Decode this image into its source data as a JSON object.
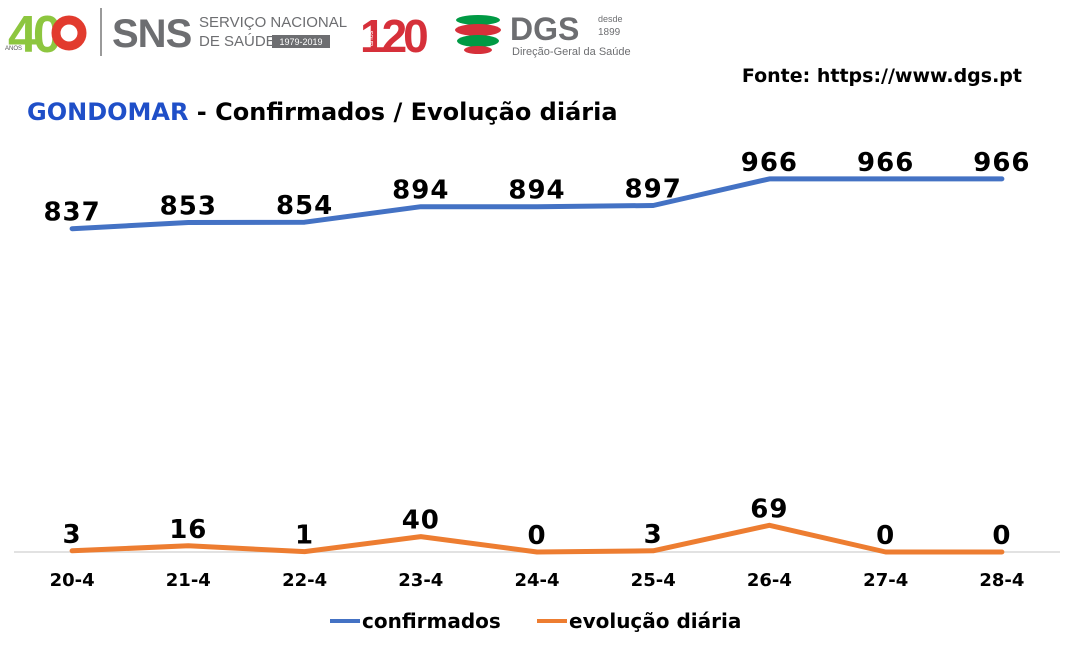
{
  "logos": {
    "forty": "40",
    "forty_sub": "ANOS",
    "sns": "SNS",
    "sns_line1": "SERVIÇO NACIONAL",
    "sns_line2": "DE SAÚDE",
    "sns_years": "1979-2019",
    "dgs_120": "120",
    "dgs_anos": "anos",
    "dgs": "DGS",
    "dgs_desde": "desde",
    "dgs_year": "1899",
    "dgs_sub": "Direção-Geral da Saúde"
  },
  "source": "Fonte: https://www.dgs.pt",
  "title": {
    "place": "GONDOMAR",
    "rest": " - Confirmados / Evolução diária"
  },
  "colors": {
    "confirmados": "#4472C4",
    "evolucao": "#ED7D31",
    "title_blue": "#1F4FC8",
    "axis": "#d9d9d9",
    "text": "#000000"
  },
  "chart_data": {
    "type": "line",
    "title": "GONDOMAR - Confirmados / Evolução diária",
    "categories": [
      "20-4",
      "21-4",
      "22-4",
      "23-4",
      "24-4",
      "25-4",
      "26-4",
      "27-4",
      "28-4"
    ],
    "series": [
      {
        "name": "confirmados",
        "values": [
          837,
          853,
          854,
          894,
          894,
          897,
          966,
          966,
          966
        ]
      },
      {
        "name": "evolução diária",
        "values": [
          3,
          16,
          1,
          40,
          0,
          3,
          69,
          0,
          0
        ]
      }
    ],
    "legend": [
      "confirmados",
      "evolução diária"
    ],
    "legend_position": "bottom",
    "ylim": [
      0,
      1090
    ],
    "grid": false,
    "xlabel": "",
    "ylabel": ""
  }
}
